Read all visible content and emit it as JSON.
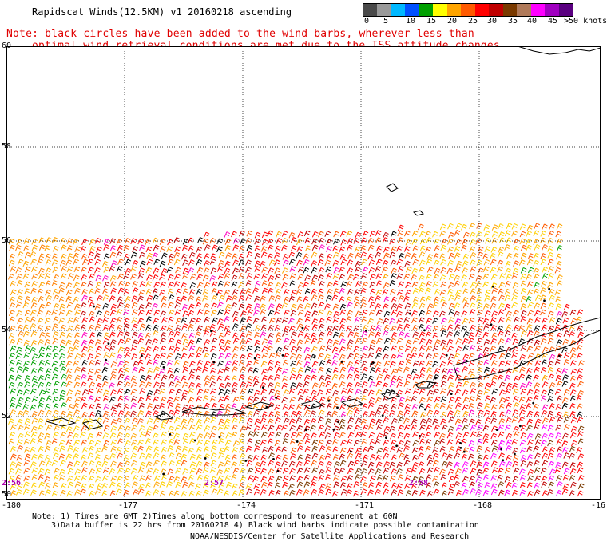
{
  "title": "Rapidscat Winds(12.5KM) v1 20160218 ascending",
  "note": {
    "line1": "Note: black circles have been added to the wind barbs, wherever less than",
    "line2": "optimal wind retrieval conditions are met due to the ISS attitude changes."
  },
  "legend": {
    "labels": [
      "0",
      "5",
      "10",
      "15",
      "20",
      "25",
      "30",
      "35",
      "40",
      "45",
      ">50 knots"
    ],
    "colors": [
      "#4a4a4a",
      "#9a9a9a",
      "#00b8ff",
      "#0050ff",
      "#00a000",
      "#ffff00",
      "#ffa500",
      "#ff5a00",
      "#ff0000",
      "#c00000",
      "#7a3a00",
      "#b07a5a",
      "#ff00ff",
      "#a000c0",
      "#5a0080"
    ]
  },
  "latitudes": [
    "60",
    "58",
    "56",
    "54",
    "52",
    "50"
  ],
  "longitudes": [
    "-180",
    "-177",
    "-174",
    "-171",
    "-168",
    "-16"
  ],
  "times": [
    "2:56",
    "2:57",
    "2:58"
  ],
  "footer": {
    "line1": "Note: 1) Times are GMT 2)Times along bottom correspond to measurement at 60N",
    "line2": "3)Data buffer is 22 hrs from 20160218 4) Black wind barbs indicate possible contamination",
    "line3": "NOAA/NESDIS/Center for Satellite Applications and Research"
  }
}
